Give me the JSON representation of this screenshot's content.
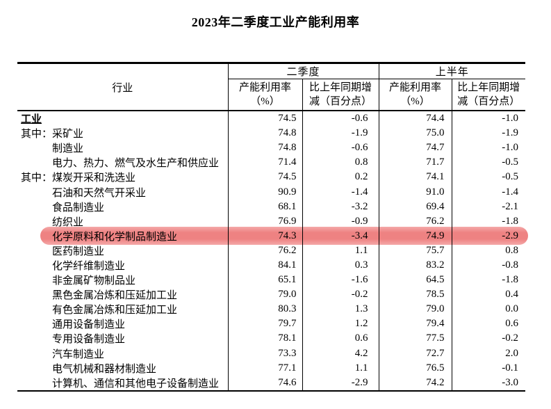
{
  "title": "2023年二季度工业产能利用率",
  "table": {
    "industry_label": "行业",
    "q2_label": "二季度",
    "h1_label": "上半年",
    "sub_headers": {
      "util_line1": "产能利用率",
      "util_line2": "（%）",
      "change_line1": "比上年同期增",
      "change_line2": "减（百分点）"
    },
    "highlight_color": "#ee8282",
    "highlight_soft_color": "#f4a9a9",
    "rows": [
      {
        "label": "工业",
        "indent": 0,
        "emphasis": true,
        "highlight": false,
        "q2_util": "74.5",
        "q2_chg": "-0.6",
        "h1_util": "74.4",
        "h1_chg": "-1.0"
      },
      {
        "label": "其中：采矿业",
        "indent": 0,
        "emphasis": false,
        "highlight": false,
        "q2_util": "74.8",
        "q2_chg": "-1.9",
        "h1_util": "75.0",
        "h1_chg": "-1.9"
      },
      {
        "label": "制造业",
        "indent": 1,
        "emphasis": false,
        "highlight": false,
        "q2_util": "74.8",
        "q2_chg": "-0.6",
        "h1_util": "74.7",
        "h1_chg": "-1.0"
      },
      {
        "label": "电力、热力、燃气及水生产和供应业",
        "indent": 1,
        "emphasis": false,
        "highlight": false,
        "q2_util": "71.4",
        "q2_chg": "0.8",
        "h1_util": "71.7",
        "h1_chg": "-0.5"
      },
      {
        "label": "其中：煤炭开采和洗选业",
        "indent": 0,
        "emphasis": false,
        "highlight": false,
        "q2_util": "74.5",
        "q2_chg": "0.2",
        "h1_util": "74.1",
        "h1_chg": "-0.5"
      },
      {
        "label": "石油和天然气开采业",
        "indent": 1,
        "emphasis": false,
        "highlight": false,
        "q2_util": "90.9",
        "q2_chg": "-1.4",
        "h1_util": "91.0",
        "h1_chg": "-1.4"
      },
      {
        "label": "食品制造业",
        "indent": 1,
        "emphasis": false,
        "highlight": false,
        "q2_util": "68.1",
        "q2_chg": "-3.2",
        "h1_util": "69.4",
        "h1_chg": "-2.1"
      },
      {
        "label": "纺织业",
        "indent": 1,
        "emphasis": false,
        "highlight": false,
        "q2_util": "76.9",
        "q2_chg": "-0.9",
        "h1_util": "76.2",
        "h1_chg": "-1.8"
      },
      {
        "label": "化学原料和化学制品制造业",
        "indent": 1,
        "emphasis": false,
        "highlight": true,
        "q2_util": "74.3",
        "q2_chg": "-3.4",
        "h1_util": "74.9",
        "h1_chg": "-2.9"
      },
      {
        "label": "医药制造业",
        "indent": 1,
        "emphasis": false,
        "highlight": false,
        "q2_util": "76.2",
        "q2_chg": "1.1",
        "h1_util": "75.7",
        "h1_chg": "0.8"
      },
      {
        "label": "化学纤维制造业",
        "indent": 1,
        "emphasis": false,
        "highlight": false,
        "q2_util": "84.1",
        "q2_chg": "0.3",
        "h1_util": "83.2",
        "h1_chg": "-0.8"
      },
      {
        "label": "非金属矿物制品业",
        "indent": 1,
        "emphasis": false,
        "highlight": false,
        "q2_util": "65.1",
        "q2_chg": "-1.6",
        "h1_util": "64.5",
        "h1_chg": "-1.8"
      },
      {
        "label": "黑色金属冶炼和压延加工业",
        "indent": 1,
        "emphasis": false,
        "highlight": false,
        "q2_util": "79.0",
        "q2_chg": "-0.2",
        "h1_util": "78.5",
        "h1_chg": "0.4"
      },
      {
        "label": "有色金属冶炼和压延加工业",
        "indent": 1,
        "emphasis": false,
        "highlight": false,
        "q2_util": "80.3",
        "q2_chg": "1.3",
        "h1_util": "79.0",
        "h1_chg": "0.0"
      },
      {
        "label": "通用设备制造业",
        "indent": 1,
        "emphasis": false,
        "highlight": false,
        "q2_util": "79.7",
        "q2_chg": "1.2",
        "h1_util": "79.4",
        "h1_chg": "0.6"
      },
      {
        "label": "专用设备制造业",
        "indent": 1,
        "emphasis": false,
        "highlight": false,
        "q2_util": "78.1",
        "q2_chg": "0.6",
        "h1_util": "77.5",
        "h1_chg": "-0.2"
      },
      {
        "label": "汽车制造业",
        "indent": 1,
        "emphasis": false,
        "highlight": false,
        "q2_util": "73.3",
        "q2_chg": "4.2",
        "h1_util": "72.7",
        "h1_chg": "2.0"
      },
      {
        "label": "电气机械和器材制造业",
        "indent": 1,
        "emphasis": false,
        "highlight": false,
        "q2_util": "77.1",
        "q2_chg": "1.1",
        "h1_util": "76.5",
        "h1_chg": "-0.1"
      },
      {
        "label": "计算机、通信和其他电子设备制造业",
        "indent": 1,
        "emphasis": false,
        "highlight": false,
        "q2_util": "74.6",
        "q2_chg": "-2.9",
        "h1_util": "74.2",
        "h1_chg": "-3.0"
      }
    ]
  }
}
